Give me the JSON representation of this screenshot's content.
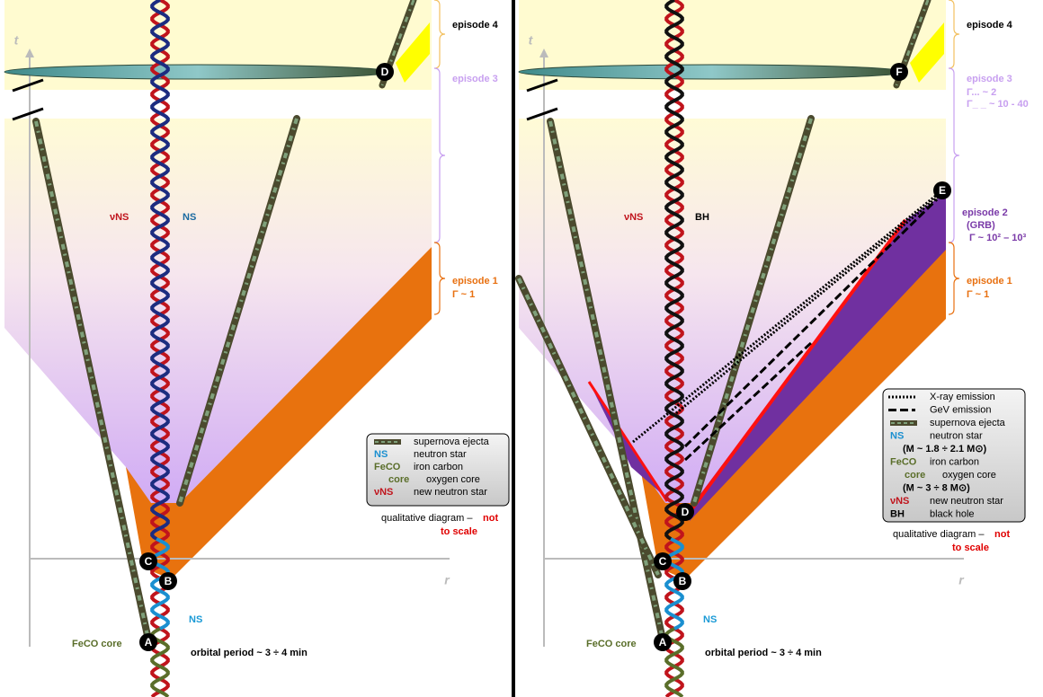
{
  "left": {
    "axis_t": "t",
    "axis_r": "r",
    "episode4": "episode 4",
    "episode3": "episode 3",
    "episode1": "episode 1",
    "episode1_gamma": "Γ ~ 1",
    "label_vns": "νNS",
    "label_ns": "NS",
    "points": {
      "A": "A",
      "B": "B",
      "C": "C",
      "D": "D"
    },
    "ns_bottom": "NS",
    "feco_core": "FeCO core",
    "orbital_period": "orbital period ~ 3 ÷ 4 min",
    "legend": [
      {
        "text": "supernova ejecta"
      },
      {
        "key": "NS",
        "text": "neutron star"
      },
      {
        "key": "FeCO",
        "text": "iron carbon"
      },
      {
        "key": "core",
        "text": "oxygen core"
      },
      {
        "key": "νNS",
        "text": "new  neutron star"
      }
    ],
    "note": [
      "qualitative diagram –",
      "not",
      "to scale"
    ]
  },
  "right": {
    "axis_t": "t",
    "axis_r": "r",
    "episode4": "episode 4",
    "episode3": "episode 3",
    "episode3_gamma1": "Γ... ~ 2",
    "episode3_gamma2": "Γ_ _ ~ 10 - 40",
    "episode2": "episode 2",
    "episode2_sub": "(GRB)",
    "episode2_gamma": "Γ ~ 10² – 10³",
    "episode1": "episode 1",
    "episode1_gamma": "Γ ~ 1",
    "label_vns": "νNS",
    "label_bh": "BH",
    "points": {
      "A": "A",
      "B": "B",
      "C": "C",
      "D": "D",
      "E": "E",
      "F": "F"
    },
    "ns_bottom": "NS",
    "feco_core": "FeCO core",
    "orbital_period": "orbital period ~ 3 ÷ 4 min",
    "legend": [
      {
        "text": "X-ray emission"
      },
      {
        "text": "GeV emission"
      },
      {
        "text": "supernova ejecta"
      },
      {
        "key": "NS",
        "text": "neutron star"
      },
      {
        "text": "(M ~ 1.8 ÷ 2.1 M⊙)"
      },
      {
        "key": "FeCO",
        "text": "iron carbon"
      },
      {
        "key": "core",
        "text": "oxygen core"
      },
      {
        "text": "(M ~ 3 ÷ 8 M⊙)"
      },
      {
        "key": "νNS",
        "text": "new  neutron star"
      },
      {
        "key": "BH",
        "text": "black hole"
      }
    ],
    "note": [
      "qualitative diagram –",
      "not",
      "to scale"
    ]
  }
}
